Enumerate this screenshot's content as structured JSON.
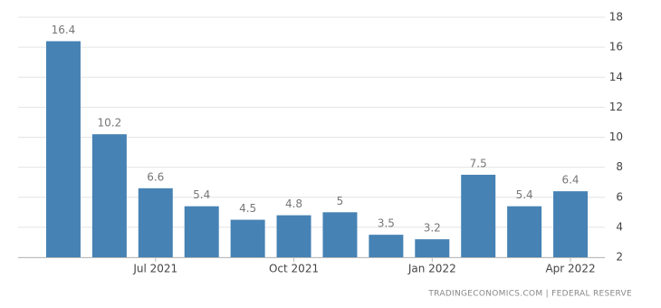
{
  "chart_data": {
    "type": "bar",
    "categories": [
      null,
      null,
      "Jul 2021",
      null,
      null,
      "Oct 2021",
      null,
      null,
      "Jan 2022",
      null,
      null,
      "Apr 2022"
    ],
    "values": [
      16.4,
      10.2,
      6.6,
      5.4,
      4.5,
      4.8,
      5,
      3.5,
      3.2,
      7.5,
      5.4,
      6.4
    ],
    "color": "#4682b4",
    "ylim": [
      2,
      18
    ],
    "yticks": [
      2,
      4,
      6,
      8,
      10,
      12,
      14,
      16,
      18
    ],
    "grid": true,
    "source": "TRADINGECONOMICS.COM | FEDERAL RESERVE"
  }
}
